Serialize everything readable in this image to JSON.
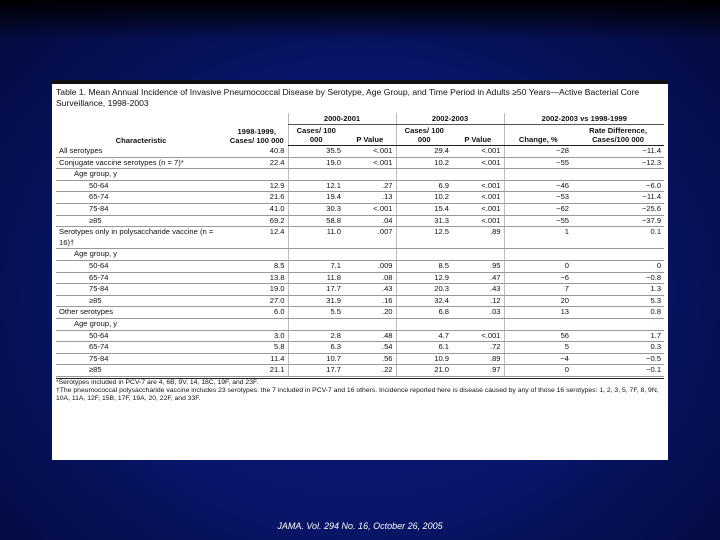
{
  "table": {
    "title": "Table 1. Mean Annual Incidence of Invasive Pneumococcal Disease by Serotype, Age Group, and Time Period in Adults ≥50 Years—Active Bacterial Core Surveillance, 1998-2003",
    "header": {
      "characteristic": "Characteristic",
      "baseline": "1998-1999, Cases/ 100 000",
      "period1": "2000-2001",
      "period2": "2002-2003",
      "comparison": "2002-2003 vs 1998-1999",
      "columns": [
        "Cases/ 100 000",
        "P Value",
        "Cases/ 100 000",
        "P Value",
        "Change, %",
        "Rate Difference, Cases/100 000"
      ]
    },
    "groups": [
      {
        "label": "All serotypes",
        "values": [
          "40.8",
          "35.5",
          "<.001",
          "29.4",
          "<.001",
          "−28",
          "−11.4"
        ]
      },
      {
        "label": "Conjugate vaccine serotypes (n = 7)*",
        "values": [
          "22.4",
          "19.0",
          "<.001",
          "10.2",
          "<.001",
          "−55",
          "−12.3"
        ],
        "subgroup": {
          "label": "Age group, y",
          "rows": [
            {
              "label": "50-64",
              "values": [
                "12.9",
                "12.1",
                ".27",
                "6.9",
                "<.001",
                "−46",
                "−6.0"
              ]
            },
            {
              "label": "65-74",
              "values": [
                "21.6",
                "19.4",
                ".13",
                "10.2",
                "<.001",
                "−53",
                "−11.4"
              ]
            },
            {
              "label": "75-84",
              "values": [
                "41.0",
                "30.3",
                "<.001",
                "15.4",
                "<.001",
                "−62",
                "−25.6"
              ]
            },
            {
              "label": "≥85",
              "values": [
                "69.2",
                "58.8",
                ".04",
                "31.3",
                "<.001",
                "−55",
                "−37.9"
              ]
            }
          ]
        }
      },
      {
        "label": "Serotypes only in polysaccharide vaccine (n = 16)†",
        "values": [
          "12.4",
          "11.0",
          ".007",
          "12.5",
          ".89",
          "1",
          "0.1"
        ],
        "subgroup": {
          "label": "Age group, y",
          "rows": [
            {
              "label": "50-64",
              "values": [
                "8.5",
                "7.1",
                ".009",
                "8.5",
                ".95",
                "0",
                "0"
              ]
            },
            {
              "label": "65-74",
              "values": [
                "13.8",
                "11.8",
                ".08",
                "12.9",
                ".47",
                "−6",
                "−0.8"
              ]
            },
            {
              "label": "75-84",
              "values": [
                "19.0",
                "17.7",
                ".43",
                "20.3",
                ".43",
                "7",
                "1.3"
              ]
            },
            {
              "label": "≥85",
              "values": [
                "27.0",
                "31.9",
                ".16",
                "32.4",
                ".12",
                "20",
                "5.3"
              ]
            }
          ]
        }
      },
      {
        "label": "Other serotypes",
        "values": [
          "6.0",
          "5.5",
          ".20",
          "6.8",
          ".03",
          "13",
          "0.8"
        ],
        "subgroup": {
          "label": "Age group, y",
          "rows": [
            {
              "label": "50-64",
              "values": [
                "3.0",
                "2.8",
                ".48",
                "4.7",
                "<.001",
                "56",
                "1.7"
              ]
            },
            {
              "label": "65-74",
              "values": [
                "5.8",
                "6.3",
                ".54",
                "6.1",
                ".72",
                "5",
                "0.3"
              ]
            },
            {
              "label": "75-84",
              "values": [
                "11.4",
                "10.7",
                ".56",
                "10.9",
                ".89",
                "−4",
                "−0.5"
              ]
            },
            {
              "label": "≥85",
              "values": [
                "21.1",
                "17.7",
                ".22",
                "21.0",
                ".97",
                "0",
                "−0.1"
              ]
            }
          ]
        }
      }
    ],
    "footnotes": [
      "*Serotypes included in PCV-7 are 4, 6B, 9V, 14, 18C, 19F, and 23F.",
      "†The pneumococcal polysaccharide vaccine includes 23 serotypes: the 7 included in PCV-7 and 16 others. Incidence reported here is disease caused by any of those 16 serotypes: 1, 2, 3, 5, 7F, 8, 9N, 10A, 11A, 12F, 15B, 17F, 19A, 20, 22F, and 33F."
    ]
  },
  "footer": "JAMA. Vol. 294 No. 16, October 26, 2005"
}
